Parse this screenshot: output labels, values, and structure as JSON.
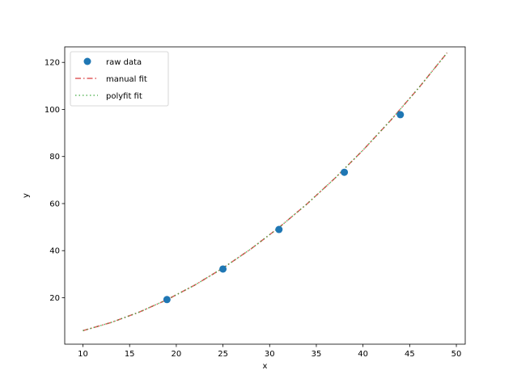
{
  "chart_data": {
    "type": "scatter",
    "title": "",
    "xlabel": "x",
    "ylabel": "y",
    "xlim": [
      8.05,
      50.95
    ],
    "ylim": [
      0.25,
      126.6
    ],
    "xticks": [
      10,
      15,
      20,
      25,
      30,
      35,
      40,
      45,
      50
    ],
    "yticks": [
      20,
      40,
      60,
      80,
      100,
      120
    ],
    "grid": false,
    "legend_position": "top-left",
    "series": [
      {
        "name": "raw data",
        "kind": "scatter",
        "color": "#1f77b4",
        "x": [
          19,
          25,
          31,
          38,
          44
        ],
        "y": [
          19.2,
          32.2,
          49.0,
          73.3,
          97.8
        ]
      },
      {
        "name": "manual fit",
        "kind": "line",
        "style": "dashdot",
        "color": "#d62728",
        "x": [
          10,
          13,
          16,
          19,
          22,
          25,
          28,
          31,
          34,
          37,
          40,
          43,
          46,
          49
        ],
        "y": [
          6.0,
          9.44,
          13.82,
          19.14,
          25.4,
          32.6,
          40.74,
          49.82,
          59.84,
          70.8,
          82.7,
          95.54,
          109.32,
          124.04
        ]
      },
      {
        "name": "polyfit fit",
        "kind": "line",
        "style": "dotted",
        "color": "#2ca02c",
        "x": [
          10,
          13,
          16,
          19,
          22,
          25,
          28,
          31,
          34,
          37,
          40,
          43,
          46,
          49
        ],
        "y": [
          6.0,
          9.44,
          13.82,
          19.14,
          25.4,
          32.6,
          40.74,
          49.82,
          59.84,
          70.8,
          82.7,
          95.54,
          109.32,
          124.04
        ]
      }
    ]
  }
}
